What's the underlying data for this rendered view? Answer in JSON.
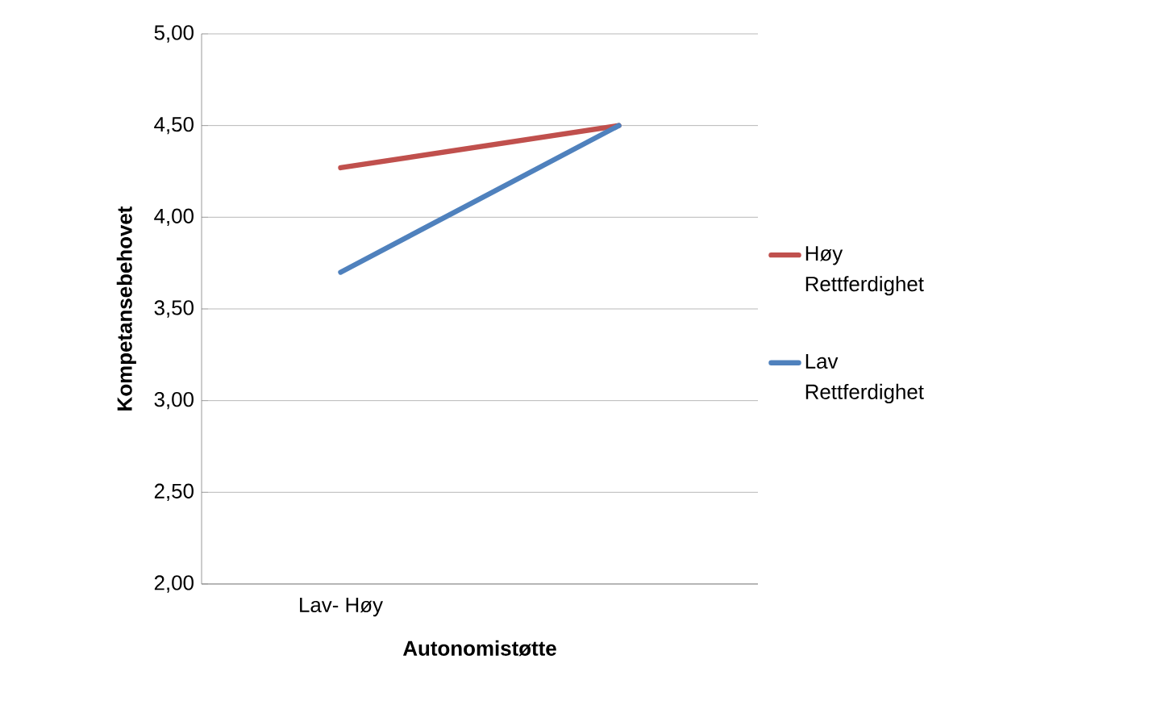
{
  "chart_data": {
    "type": "line",
    "xlabel": "Autonomistøtte",
    "ylabel": "Kompetansebehovet",
    "categories": [
      "Lav- Høy",
      null
    ],
    "series": [
      {
        "name": "Høy Rettferdighet",
        "color": "#c0504d",
        "values": [
          4.27,
          4.5
        ]
      },
      {
        "name": "Lav Rettferdighet",
        "color": "#4f81bd",
        "values": [
          3.7,
          4.5
        ]
      }
    ],
    "ylim": [
      2,
      5
    ],
    "yticks": [
      {
        "value": 2,
        "label": "2,00"
      },
      {
        "value": 2.5,
        "label": "2,50"
      },
      {
        "value": 3,
        "label": "3,00"
      },
      {
        "value": 3.5,
        "label": "3,50"
      },
      {
        "value": 4,
        "label": "4,00"
      },
      {
        "value": 4.5,
        "label": "4,50"
      },
      {
        "value": 5,
        "label": "5,00"
      }
    ],
    "grid": "y",
    "legend": "right",
    "marker": "none",
    "line_style": "solid"
  }
}
